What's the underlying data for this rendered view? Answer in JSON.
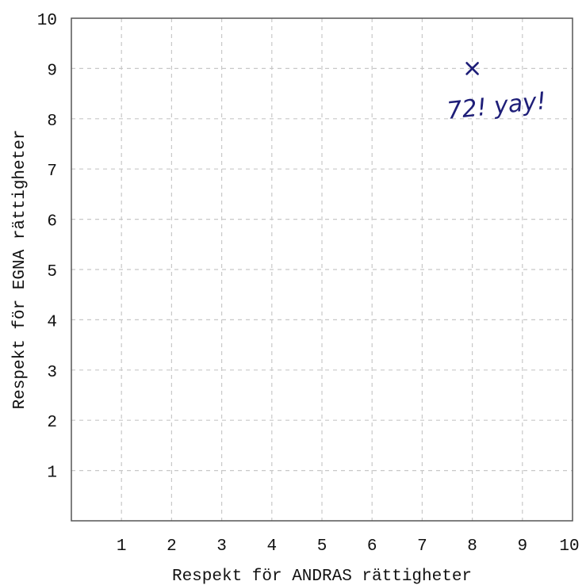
{
  "chart_data": {
    "type": "scatter",
    "xlabel": "Respekt för ANDRAS rättigheter",
    "ylabel": "Respekt för EGNA rättigheter",
    "xlim": [
      0,
      10
    ],
    "ylim": [
      0,
      10
    ],
    "x_ticks": [
      "1",
      "2",
      "3",
      "4",
      "5",
      "6",
      "7",
      "8",
      "9",
      "10"
    ],
    "y_ticks": [
      "1",
      "2",
      "3",
      "4",
      "5",
      "6",
      "7",
      "8",
      "9",
      "10"
    ],
    "grid": true,
    "points": [
      {
        "x": 8,
        "y": 9,
        "marker": "x"
      }
    ],
    "annotations": [
      {
        "text": "72! yay!",
        "x": 8.5,
        "y": 8.1
      }
    ],
    "colors": {
      "marker": "#1e1e78",
      "grid": "#c8c8c8",
      "frame": "#555555"
    }
  }
}
